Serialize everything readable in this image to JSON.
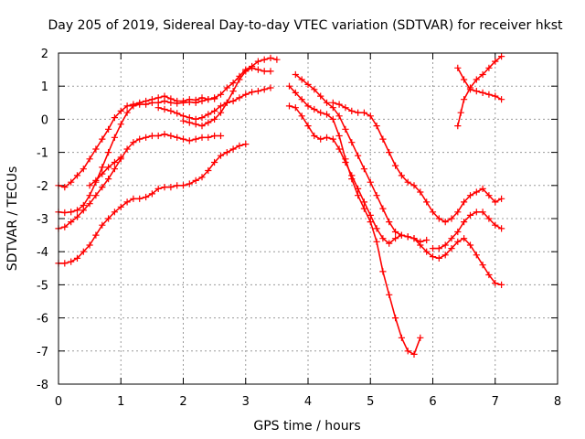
{
  "chart_data": {
    "type": "scatter",
    "title": "Day 205 of 2019, Sidereal Day-to-day VTEC variation (SDTVAR) for receiver hkst",
    "xlabel": "GPS time / hours",
    "ylabel": "SDTVAR / TECUs",
    "xlim": [
      0,
      8
    ],
    "ylim": [
      -8,
      2
    ],
    "xticks": [
      "0",
      "1",
      "2",
      "3",
      "4",
      "5",
      "6",
      "7",
      "8"
    ],
    "yticks": [
      "-8",
      "-7",
      "-6",
      "-5",
      "-4",
      "-3",
      "-2",
      "-1",
      "0",
      "1",
      "2"
    ],
    "grid": true,
    "marker": "plus",
    "color": "#ff0000",
    "series": [
      {
        "x": [
          0.0,
          0.1,
          0.2,
          0.3,
          0.4,
          0.5,
          0.6,
          0.7,
          0.8,
          0.9,
          1.0,
          1.1,
          1.2,
          1.3,
          1.4,
          1.5,
          1.6,
          1.7,
          1.8,
          1.9,
          2.0,
          2.1,
          2.2,
          2.3,
          2.4,
          2.5,
          2.6,
          2.7,
          2.8,
          2.9,
          3.0,
          3.1,
          3.2,
          3.3,
          3.4,
          3.5
        ],
        "y": [
          -2.0,
          -2.05,
          -1.9,
          -1.7,
          -1.5,
          -1.2,
          -0.9,
          -0.6,
          -0.3,
          0.05,
          0.25,
          0.4,
          0.45,
          0.5,
          0.55,
          0.6,
          0.65,
          0.7,
          0.62,
          0.55,
          0.55,
          0.6,
          0.58,
          0.65,
          0.6,
          0.65,
          0.75,
          0.95,
          1.1,
          1.3,
          1.5,
          1.6,
          1.75,
          1.8,
          1.85,
          1.8
        ]
      },
      {
        "x": [
          0.0,
          0.1,
          0.2,
          0.3,
          0.4,
          0.5,
          0.6,
          0.7,
          0.8,
          0.9,
          1.0,
          1.1,
          1.2,
          1.3,
          1.4,
          1.5,
          1.6,
          1.7,
          1.8,
          1.9,
          2.0,
          2.1,
          2.2,
          2.3,
          2.4,
          2.5
        ],
        "y": [
          -2.8,
          -2.82,
          -2.8,
          -2.75,
          -2.6,
          -2.3,
          -1.9,
          -1.45,
          -1.0,
          -0.55,
          -0.15,
          0.2,
          0.4,
          0.45,
          0.45,
          0.5,
          0.5,
          0.55,
          0.5,
          0.48,
          0.5,
          0.52,
          0.5,
          0.55,
          0.6,
          0.62
        ]
      },
      {
        "x": [
          0.0,
          0.1,
          0.2,
          0.3,
          0.4,
          0.5,
          0.6,
          0.7,
          0.8,
          0.9,
          1.0,
          1.1,
          1.2,
          1.3,
          1.4,
          1.5,
          1.6,
          1.7,
          1.8,
          1.9,
          2.0,
          2.1,
          2.2,
          2.3,
          2.4,
          2.5,
          2.6
        ],
        "y": [
          -3.3,
          -3.25,
          -3.1,
          -2.95,
          -2.75,
          -2.55,
          -2.3,
          -2.05,
          -1.8,
          -1.5,
          -1.2,
          -0.9,
          -0.7,
          -0.6,
          -0.55,
          -0.5,
          -0.5,
          -0.45,
          -0.5,
          -0.55,
          -0.6,
          -0.65,
          -0.6,
          -0.55,
          -0.55,
          -0.5,
          -0.5
        ]
      },
      {
        "x": [
          0.0,
          0.1,
          0.2,
          0.3,
          0.4,
          0.5,
          0.6,
          0.7,
          0.8,
          0.9,
          1.0,
          1.1,
          1.2,
          1.3,
          1.4,
          1.5,
          1.6,
          1.7,
          1.8,
          1.9,
          2.0,
          2.1,
          2.2,
          2.3,
          2.4,
          2.5,
          2.6,
          2.7,
          2.8,
          2.9,
          3.0
        ],
        "y": [
          -4.35,
          -4.35,
          -4.3,
          -4.2,
          -4.0,
          -3.8,
          -3.5,
          -3.2,
          -3.0,
          -2.8,
          -2.65,
          -2.5,
          -2.4,
          -2.4,
          -2.35,
          -2.25,
          -2.1,
          -2.05,
          -2.05,
          -2.0,
          -2.0,
          -1.95,
          -1.85,
          -1.75,
          -1.55,
          -1.3,
          -1.1,
          -1.0,
          -0.9,
          -0.8,
          -0.75
        ]
      },
      {
        "x": [
          0.5,
          0.6,
          0.7,
          0.8,
          0.9,
          1.0
        ],
        "y": [
          -2.0,
          -1.85,
          -1.65,
          -1.45,
          -1.3,
          -1.15
        ]
      },
      {
        "x": [
          1.6,
          1.7,
          1.8,
          1.9,
          2.0,
          2.1,
          2.2,
          2.3,
          2.4,
          2.5,
          2.6,
          2.7,
          2.8,
          2.9,
          3.0,
          3.1,
          3.2,
          3.3,
          3.4
        ],
        "y": [
          0.35,
          0.3,
          0.25,
          0.18,
          0.1,
          0.05,
          0.0,
          0.05,
          0.15,
          0.25,
          0.4,
          0.5,
          0.55,
          0.65,
          0.75,
          0.82,
          0.85,
          0.9,
          0.95
        ]
      },
      {
        "x": [
          2.0,
          2.1,
          2.2,
          2.3,
          2.4,
          2.5,
          2.6,
          2.7,
          2.8,
          2.9,
          3.0,
          3.1,
          3.2,
          3.3,
          3.4
        ],
        "y": [
          -0.05,
          -0.1,
          -0.15,
          -0.2,
          -0.1,
          0.0,
          0.2,
          0.5,
          0.85,
          1.2,
          1.45,
          1.55,
          1.5,
          1.45,
          1.45
        ]
      },
      {
        "x": [
          3.7,
          3.8,
          3.9,
          4.0,
          4.1,
          4.2,
          4.3,
          4.4,
          4.5,
          4.6,
          4.7,
          4.8,
          4.9,
          5.0,
          5.1,
          5.2,
          5.3,
          5.4,
          5.5,
          5.6,
          5.7,
          5.8
        ],
        "y": [
          1.0,
          0.8,
          0.6,
          0.4,
          0.3,
          0.2,
          0.15,
          0.0,
          -0.5,
          -1.2,
          -1.8,
          -2.3,
          -2.7,
          -3.1,
          -3.7,
          -4.6,
          -5.3,
          -6.0,
          -6.6,
          -7.0,
          -7.1,
          -6.6
        ]
      },
      {
        "x": [
          3.7,
          3.8,
          3.9,
          4.0,
          4.1,
          4.2,
          4.3,
          4.4,
          4.5,
          4.6,
          4.7,
          4.8,
          4.9,
          5.0,
          5.1,
          5.2,
          5.3,
          5.4,
          5.5,
          5.6,
          5.7,
          5.8,
          5.9
        ],
        "y": [
          0.4,
          0.35,
          0.1,
          -0.2,
          -0.5,
          -0.6,
          -0.55,
          -0.6,
          -0.9,
          -1.3,
          -1.7,
          -2.1,
          -2.5,
          -2.9,
          -3.3,
          -3.6,
          -3.75,
          -3.6,
          -3.5,
          -3.55,
          -3.6,
          -3.7,
          -3.65
        ]
      },
      {
        "x": [
          3.8,
          3.9,
          4.0,
          4.1,
          4.2,
          4.3,
          4.4,
          4.5,
          4.6,
          4.7,
          4.8,
          4.9,
          5.0,
          5.1,
          5.2,
          5.3,
          5.4,
          5.5,
          5.6,
          5.7,
          5.8,
          5.9,
          6.0,
          6.1,
          6.2,
          6.3,
          6.4,
          6.5,
          6.6,
          6.7,
          6.8,
          6.9,
          7.0,
          7.1
        ],
        "y": [
          1.35,
          1.2,
          1.05,
          0.9,
          0.7,
          0.5,
          0.35,
          0.1,
          -0.3,
          -0.7,
          -1.1,
          -1.5,
          -1.9,
          -2.3,
          -2.7,
          -3.1,
          -3.4,
          -3.5,
          -3.55,
          -3.6,
          -3.8,
          -4.0,
          -4.15,
          -4.2,
          -4.1,
          -3.9,
          -3.7,
          -3.6,
          -3.8,
          -4.1,
          -4.4,
          -4.7,
          -4.95,
          -5.0
        ]
      },
      {
        "x": [
          4.4,
          4.5,
          4.6,
          4.7,
          4.8,
          4.9,
          5.0,
          5.1,
          5.2,
          5.3,
          5.4,
          5.5,
          5.6,
          5.7,
          5.8,
          5.9,
          6.0,
          6.1,
          6.2,
          6.3,
          6.4,
          6.5,
          6.6,
          6.7,
          6.8,
          6.9,
          7.0,
          7.1
        ],
        "y": [
          0.5,
          0.45,
          0.35,
          0.25,
          0.2,
          0.2,
          0.1,
          -0.2,
          -0.6,
          -1.0,
          -1.4,
          -1.7,
          -1.9,
          -2.0,
          -2.2,
          -2.5,
          -2.8,
          -3.0,
          -3.1,
          -3.0,
          -2.8,
          -2.5,
          -2.3,
          -2.2,
          -2.1,
          -2.3,
          -2.5,
          -2.4
        ]
      },
      {
        "x": [
          6.0,
          6.1,
          6.2,
          6.3,
          6.4,
          6.5,
          6.6,
          6.7,
          6.8,
          6.9,
          7.0,
          7.1
        ],
        "y": [
          -3.9,
          -3.9,
          -3.8,
          -3.6,
          -3.4,
          -3.1,
          -2.9,
          -2.8,
          -2.8,
          -3.0,
          -3.2,
          -3.3
        ]
      },
      {
        "x": [
          6.4,
          6.5,
          6.6,
          6.7,
          6.8,
          6.9,
          7.0,
          7.1
        ],
        "y": [
          1.55,
          1.2,
          0.9,
          0.85,
          0.8,
          0.75,
          0.7,
          0.6
        ]
      },
      {
        "x": [
          6.4,
          6.45,
          6.5,
          6.6,
          6.7,
          6.8,
          6.9,
          7.0,
          7.1
        ],
        "y": [
          -0.2,
          0.2,
          0.6,
          0.95,
          1.2,
          1.35,
          1.55,
          1.75,
          1.9
        ]
      }
    ]
  }
}
